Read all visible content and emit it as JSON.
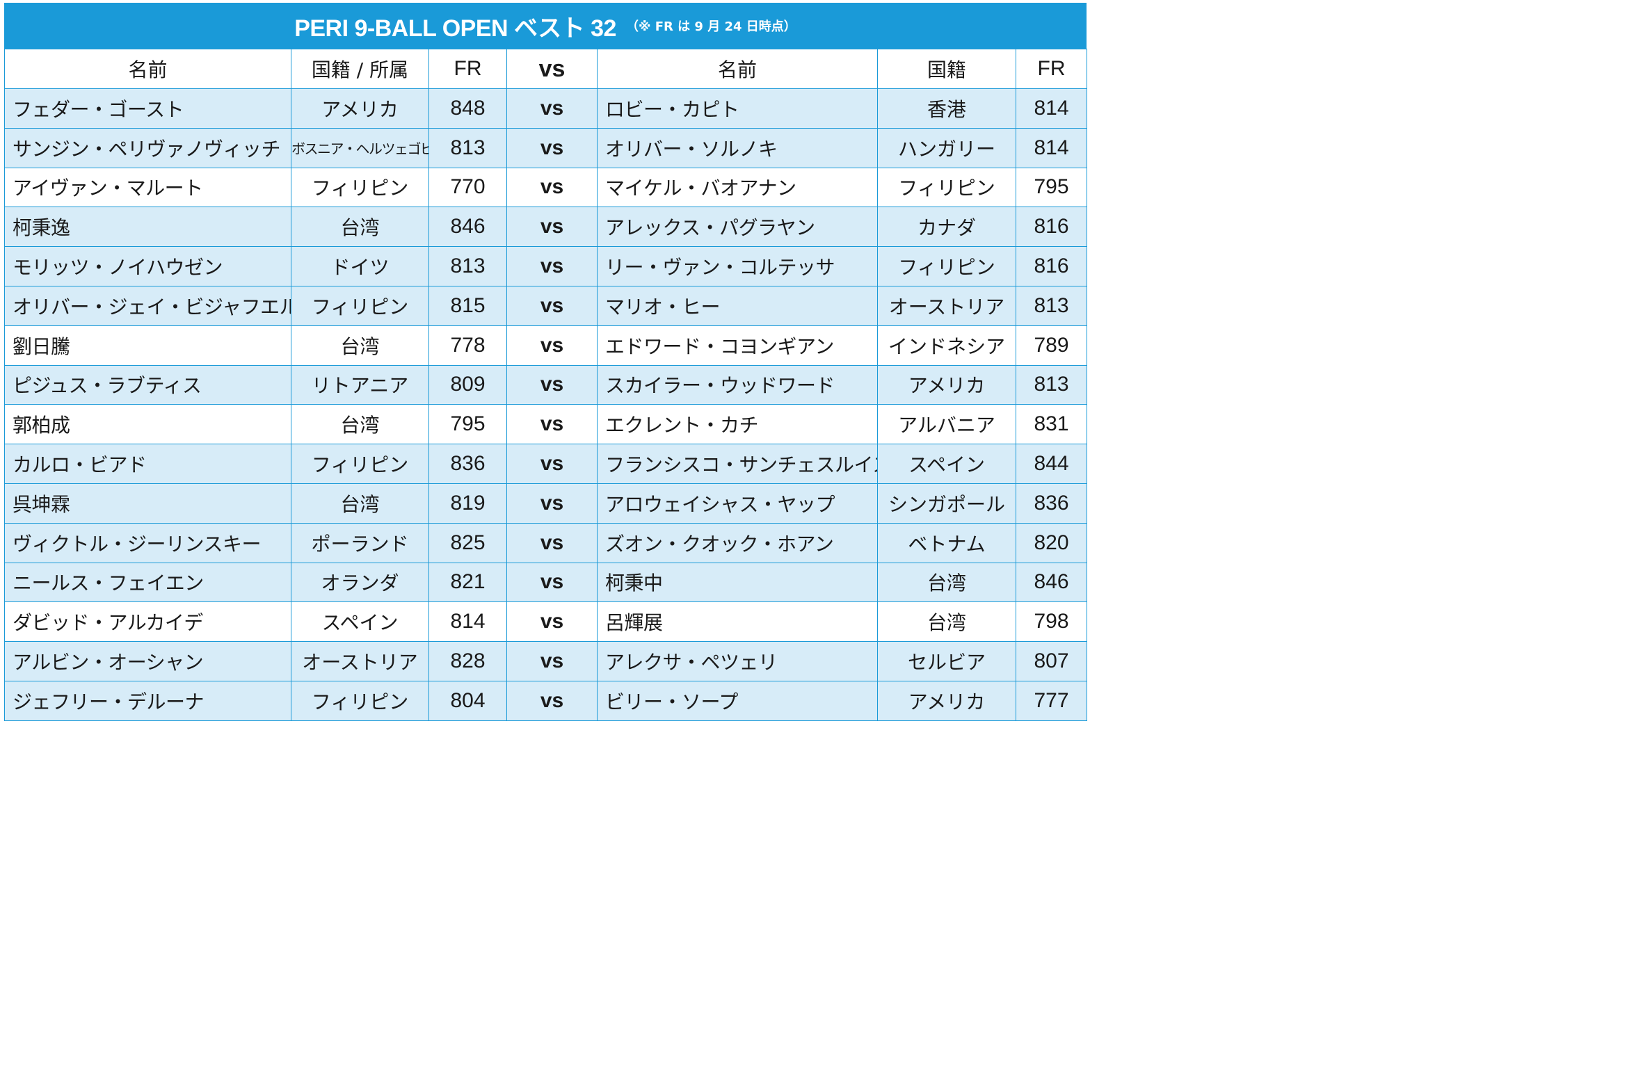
{
  "title": {
    "main": "PERI 9-BALL OPEN ベスト 32",
    "note": "（※ FR は 9 月 24 日時点）"
  },
  "headers": {
    "left_name": "名前",
    "left_country": "国籍 / 所属",
    "left_fr": "FR",
    "vs": "vs",
    "right_name": "名前",
    "right_country": "国籍",
    "right_fr": "FR"
  },
  "colors": {
    "accent": "#1a9ad8",
    "row_shade": "#d7ecf8"
  },
  "rows": [
    {
      "l_name": "フェダー・ゴースト",
      "l_country": "アメリカ",
      "l_fr": "848",
      "vs": "vs",
      "r_name": "ロビー・カピト",
      "r_country": "香港",
      "r_fr": "814"
    },
    {
      "l_name": "サンジン・ペリヴァノヴィッチ",
      "l_country": "ボスニア・ヘルツェゴビナ",
      "l_fr": "813",
      "vs": "vs",
      "r_name": "オリバー・ソルノキ",
      "r_country": "ハンガリー",
      "r_fr": "814"
    },
    {
      "l_name": "アイヴァン・マルート",
      "l_country": "フィリピン",
      "l_fr": "770",
      "vs": "vs",
      "r_name": "マイケル・バオアナン",
      "r_country": "フィリピン",
      "r_fr": "795"
    },
    {
      "l_name": "柯秉逸",
      "l_country": "台湾",
      "l_fr": "846",
      "vs": "vs",
      "r_name": "アレックス・パグラヤン",
      "r_country": "カナダ",
      "r_fr": "816"
    },
    {
      "l_name": "モリッツ・ノイハウゼン",
      "l_country": "ドイツ",
      "l_fr": "813",
      "vs": "vs",
      "r_name": "リー・ヴァン・コルテッサ",
      "r_country": "フィリピン",
      "r_fr": "816"
    },
    {
      "l_name": "オリバー・ジェイ・ビジャフエルテ",
      "l_country": "フィリピン",
      "l_fr": "815",
      "vs": "vs",
      "r_name": "マリオ・ヒー",
      "r_country": "オーストリア",
      "r_fr": "813"
    },
    {
      "l_name": "劉日騰",
      "l_country": "台湾",
      "l_fr": "778",
      "vs": "vs",
      "r_name": "エドワード・コヨンギアン",
      "r_country": "インドネシア",
      "r_fr": "789"
    },
    {
      "l_name": "ピジュス・ラブティス",
      "l_country": "リトアニア",
      "l_fr": "809",
      "vs": "vs",
      "r_name": "スカイラー・ウッドワード",
      "r_country": "アメリカ",
      "r_fr": "813"
    },
    {
      "l_name": "郭柏成",
      "l_country": "台湾",
      "l_fr": "795",
      "vs": "vs",
      "r_name": "エクレント・カチ",
      "r_country": "アルバニア",
      "r_fr": "831"
    },
    {
      "l_name": "カルロ・ビアド",
      "l_country": "フィリピン",
      "l_fr": "836",
      "vs": "vs",
      "r_name": "フランシスコ・サンチェスルイス",
      "r_country": "スペイン",
      "r_fr": "844"
    },
    {
      "l_name": "呉坤霖",
      "l_country": "台湾",
      "l_fr": "819",
      "vs": "vs",
      "r_name": "アロウェイシャス・ヤップ",
      "r_country": "シンガポール",
      "r_fr": "836"
    },
    {
      "l_name": "ヴィクトル・ジーリンスキー",
      "l_country": "ポーランド",
      "l_fr": "825",
      "vs": "vs",
      "r_name": "ズオン・クオック・ホアン",
      "r_country": "ベトナム",
      "r_fr": "820"
    },
    {
      "l_name": "ニールス・フェイエン",
      "l_country": "オランダ",
      "l_fr": "821",
      "vs": "vs",
      "r_name": "柯秉中",
      "r_country": "台湾",
      "r_fr": "846"
    },
    {
      "l_name": "ダビッド・アルカイデ",
      "l_country": "スペイン",
      "l_fr": "814",
      "vs": "vs",
      "r_name": "呂輝展",
      "r_country": "台湾",
      "r_fr": "798"
    },
    {
      "l_name": "アルビン・オーシャン",
      "l_country": "オーストリア",
      "l_fr": "828",
      "vs": "vs",
      "r_name": "アレクサ・ペツェリ",
      "r_country": "セルビア",
      "r_fr": "807"
    },
    {
      "l_name": "ジェフリー・デルーナ",
      "l_country": "フィリピン",
      "l_fr": "804",
      "vs": "vs",
      "r_name": "ビリー・ソープ",
      "r_country": "アメリカ",
      "r_fr": "777"
    }
  ]
}
